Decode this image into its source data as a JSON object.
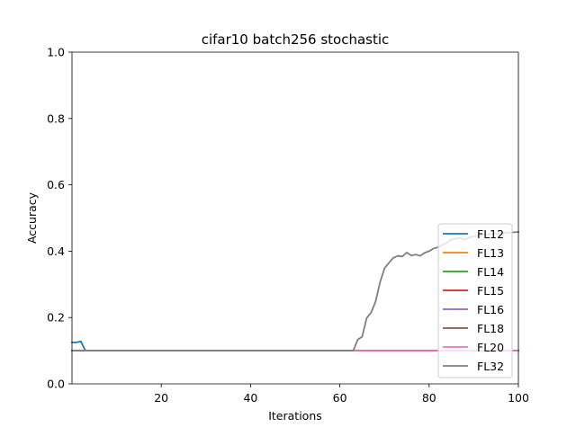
{
  "chart_data": {
    "type": "line",
    "title": "cifar10 batch256 stochastic",
    "xlabel": "Iterations",
    "ylabel": "Accuracy",
    "xlim": [
      0,
      100
    ],
    "ylim": [
      0.0,
      1.0
    ],
    "xticks": [
      20,
      40,
      60,
      80,
      100
    ],
    "xtick_labels": [
      "20",
      "40",
      "60",
      "80",
      "100"
    ],
    "yticks": [
      0.0,
      0.2,
      0.4,
      0.6,
      0.8,
      1.0
    ],
    "ytick_labels": [
      "0.0",
      "0.2",
      "0.4",
      "0.6",
      "0.8",
      "1.0"
    ],
    "grid": false,
    "legend_position": "lower-right",
    "series": [
      {
        "name": "FL12",
        "color": "#1f77b4",
        "x": [
          0,
          1,
          2,
          3,
          100
        ],
        "y": [
          0.125,
          0.125,
          0.128,
          0.1,
          0.1
        ]
      },
      {
        "name": "FL13",
        "color": "#ff7f0e",
        "x": [
          0,
          100
        ],
        "y": [
          0.1,
          0.1
        ]
      },
      {
        "name": "FL14",
        "color": "#2ca02c",
        "x": [
          0,
          100
        ],
        "y": [
          0.1,
          0.1
        ]
      },
      {
        "name": "FL15",
        "color": "#d62728",
        "x": [
          0,
          100
        ],
        "y": [
          0.1,
          0.1
        ]
      },
      {
        "name": "FL16",
        "color": "#9467bd",
        "x": [
          0,
          100
        ],
        "y": [
          0.1,
          0.1
        ]
      },
      {
        "name": "FL18",
        "color": "#8c564b",
        "x": [
          0,
          100
        ],
        "y": [
          0.1,
          0.1
        ]
      },
      {
        "name": "FL20",
        "color": "#e377c2",
        "x": [
          0,
          100
        ],
        "y": [
          0.1,
          0.1
        ]
      },
      {
        "name": "FL32",
        "color": "#7f7f7f",
        "x": [
          0,
          62,
          63,
          64,
          65,
          66,
          67,
          68,
          69,
          70,
          71,
          72,
          73,
          74,
          75,
          76,
          77,
          78,
          79,
          80,
          81,
          82,
          83,
          84,
          85,
          86,
          87,
          88,
          89,
          90,
          91,
          92,
          93,
          94,
          95,
          96,
          97,
          98,
          99,
          100
        ],
        "y": [
          0.1,
          0.1,
          0.1,
          0.133,
          0.142,
          0.198,
          0.215,
          0.248,
          0.306,
          0.348,
          0.365,
          0.38,
          0.386,
          0.384,
          0.396,
          0.387,
          0.39,
          0.386,
          0.395,
          0.4,
          0.408,
          0.412,
          0.419,
          0.426,
          0.435,
          0.438,
          0.44,
          0.435,
          0.441,
          0.445,
          0.447,
          0.449,
          0.451,
          0.452,
          0.453,
          0.454,
          0.455,
          0.456,
          0.457,
          0.458
        ]
      }
    ]
  }
}
